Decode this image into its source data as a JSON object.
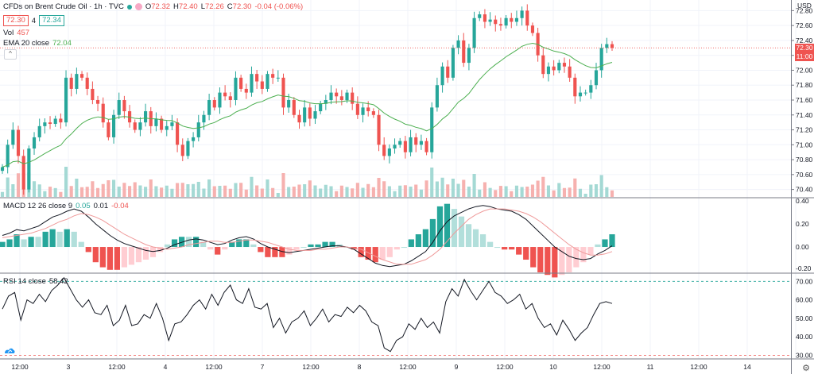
{
  "header": {
    "symbol": "CFDs on Brent Crude Oil · 1h · TVC",
    "ohlc": {
      "o_label": "O",
      "o": "72.32",
      "h_label": "H",
      "h": "72.40",
      "l_label": "L",
      "l": "72.26",
      "c_label": "C",
      "c": "72.30",
      "chg": "-0.04 (-0.06%)"
    },
    "bid": "72.30",
    "spread": "4",
    "ask": "72.34"
  },
  "vol_legend": {
    "label": "Vol",
    "value": "457"
  },
  "ema_legend": {
    "label": "EMA 20 close",
    "value": "72.04"
  },
  "macd_legend": {
    "label": "MACD 12 26 close 9",
    "hist": "0.05",
    "macd": "0.01",
    "signal": "-0.04"
  },
  "rsi_legend": {
    "label": "RSI 14 close",
    "value": "58.42"
  },
  "price_axis": {
    "currency": "USD",
    "ticks": [
      "72.80",
      "72.60",
      "72.40",
      "72.20",
      "72.00",
      "71.80",
      "71.60",
      "71.40",
      "71.20",
      "71.00",
      "70.80",
      "70.60",
      "70.40"
    ]
  },
  "price_tag": {
    "price": "72.30",
    "time": "11:00"
  },
  "macd_axis": {
    "ticks": [
      "0.40",
      "0.20",
      "0.00",
      "-0.20"
    ]
  },
  "rsi_axis": {
    "ticks": [
      "70.00",
      "60.00",
      "50.00",
      "40.00",
      "30.00"
    ]
  },
  "time_axis": {
    "labels": [
      "12:00",
      "3",
      "12:00",
      "4",
      "12:00",
      "7",
      "12:00",
      "8",
      "12:00",
      "9",
      "12:00",
      "10",
      "12:00",
      "11",
      "12:00",
      "14"
    ]
  },
  "colors": {
    "up": "#26a69a",
    "down": "#ef5350",
    "ema": "#4caf50",
    "macd": "#131722",
    "signal": "#ef9a9a",
    "rsi": "#131722"
  },
  "chart_data": [
    {
      "type": "candlestick",
      "title": "CFDs on Brent Crude Oil · 1h · TVC",
      "ylim": [
        70.3,
        72.9
      ],
      "ylabel": "USD",
      "close": [
        70.7,
        71.0,
        71.2,
        70.85,
        70.4,
        70.95,
        71.1,
        71.25,
        71.3,
        71.28,
        71.35,
        71.3,
        71.9,
        71.75,
        71.95,
        71.9,
        71.75,
        71.6,
        71.55,
        71.3,
        71.1,
        71.4,
        71.6,
        71.45,
        71.3,
        71.2,
        71.3,
        71.45,
        71.25,
        71.35,
        71.2,
        71.25,
        71.3,
        71.0,
        70.85,
        71.05,
        71.1,
        71.3,
        71.4,
        71.6,
        71.5,
        71.7,
        71.65,
        71.6,
        71.9,
        71.75,
        71.7,
        71.95,
        71.85,
        71.75,
        71.95,
        71.9,
        71.9,
        71.5,
        71.6,
        71.4,
        71.3,
        71.5,
        71.35,
        71.45,
        71.55,
        71.6,
        71.7,
        71.65,
        71.6,
        71.7,
        71.55,
        71.4,
        71.5,
        71.45,
        71.4,
        71.0,
        70.85,
        70.95,
        71.0,
        71.05,
        70.9,
        71.1,
        71.0,
        71.05,
        70.9,
        71.5,
        71.8,
        72.05,
        71.9,
        72.3,
        72.4,
        72.1,
        72.3,
        72.7,
        72.75,
        72.65,
        72.68,
        72.62,
        72.6,
        72.7,
        72.65,
        72.7,
        72.8,
        72.6,
        72.5,
        72.2,
        71.95,
        72.05,
        72.0,
        72.1,
        72.05,
        71.9,
        71.65,
        71.7,
        71.7,
        71.8,
        72.0,
        72.3,
        72.35,
        72.3
      ]
    },
    {
      "type": "line",
      "title": "MACD 12 26 close 9",
      "ylim": [
        -0.22,
        0.42
      ],
      "series": [
        {
          "name": "MACD",
          "values": [
            0.1,
            0.12,
            0.15,
            0.14,
            0.16,
            0.18,
            0.22,
            0.26,
            0.28,
            0.31,
            0.33,
            0.31,
            0.26,
            0.2,
            0.15,
            0.1,
            0.06,
            0.03,
            0.01,
            -0.01,
            -0.03,
            -0.04,
            -0.03,
            -0.01,
            0.02,
            0.04,
            0.06,
            0.07,
            0.06,
            0.04,
            0.02,
            0.03,
            0.06,
            0.08,
            0.09,
            0.07,
            0.03,
            0.0,
            -0.02,
            -0.04,
            -0.05,
            -0.04,
            -0.03,
            -0.02,
            -0.01,
            0.0,
            0.01,
            0.01,
            0.0,
            -0.02,
            -0.06,
            -0.1,
            -0.14,
            -0.16,
            -0.17,
            -0.16,
            -0.15,
            -0.12,
            -0.08,
            -0.04,
            0.04,
            0.14,
            0.22,
            0.27,
            0.3,
            0.33,
            0.35,
            0.36,
            0.35,
            0.33,
            0.32,
            0.31,
            0.28,
            0.24,
            0.18,
            0.12,
            0.06,
            0.0,
            -0.04,
            -0.08,
            -0.1,
            -0.11,
            -0.1,
            -0.06,
            -0.03,
            0.01
          ]
        },
        {
          "name": "Signal",
          "values": [
            0.08,
            0.09,
            0.1,
            0.11,
            0.12,
            0.14,
            0.16,
            0.19,
            0.22,
            0.24,
            0.27,
            0.29,
            0.28,
            0.26,
            0.23,
            0.19,
            0.15,
            0.11,
            0.08,
            0.05,
            0.02,
            0.0,
            -0.01,
            -0.02,
            -0.01,
            0.0,
            0.02,
            0.03,
            0.04,
            0.05,
            0.05,
            0.04,
            0.04,
            0.05,
            0.06,
            0.06,
            0.05,
            0.04,
            0.02,
            0.0,
            -0.02,
            -0.03,
            -0.03,
            -0.03,
            -0.02,
            -0.02,
            -0.01,
            0.0,
            0.0,
            -0.01,
            -0.02,
            -0.05,
            -0.08,
            -0.11,
            -0.13,
            -0.15,
            -0.15,
            -0.15,
            -0.13,
            -0.11,
            -0.07,
            -0.02,
            0.05,
            0.12,
            0.18,
            0.24,
            0.28,
            0.31,
            0.33,
            0.33,
            0.33,
            0.32,
            0.31,
            0.29,
            0.26,
            0.22,
            0.17,
            0.12,
            0.07,
            0.02,
            -0.02,
            -0.05,
            -0.07,
            -0.07,
            -0.06,
            -0.04
          ]
        }
      ]
    },
    {
      "type": "line",
      "title": "RSI 14 close",
      "ylim": [
        28,
        74
      ],
      "levels": [
        70,
        30
      ],
      "series": [
        {
          "name": "RSI",
          "values": [
            55,
            62,
            64,
            49,
            60,
            58,
            63,
            59,
            65,
            68,
            72,
            66,
            60,
            56,
            60,
            53,
            52,
            57,
            46,
            49,
            57,
            46,
            47,
            52,
            50,
            58,
            50,
            38,
            47,
            48,
            52,
            57,
            60,
            55,
            63,
            57,
            64,
            68,
            60,
            58,
            66,
            56,
            55,
            58,
            45,
            50,
            42,
            48,
            50,
            54,
            46,
            50,
            55,
            48,
            52,
            51,
            56,
            53,
            57,
            54,
            48,
            46,
            34,
            32,
            38,
            40,
            47,
            44,
            50,
            45,
            48,
            42,
            59,
            66,
            62,
            71,
            65,
            60,
            65,
            70,
            64,
            62,
            58,
            60,
            63,
            55,
            58,
            50,
            45,
            47,
            41,
            49,
            44,
            38,
            42,
            45,
            52,
            58,
            59,
            58
          ]
        }
      ]
    }
  ]
}
